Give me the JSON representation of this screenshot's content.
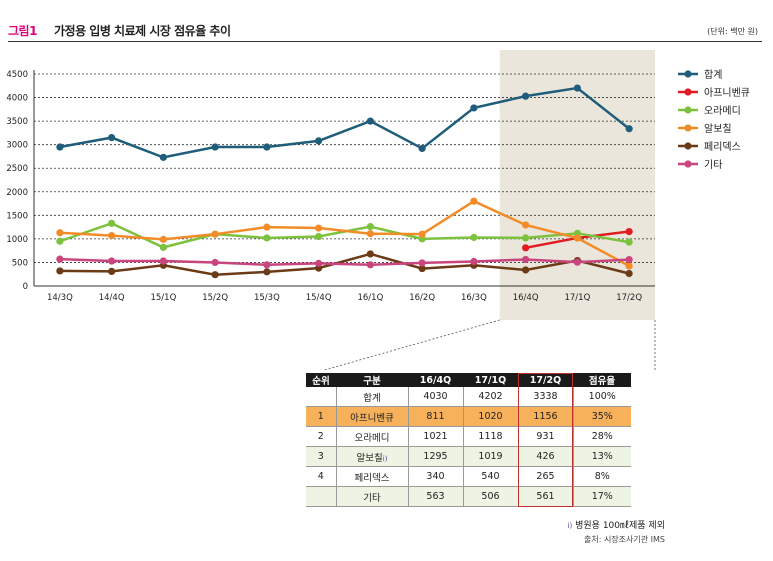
{
  "figure": {
    "label": "그림1",
    "title": "가정용 입병 치료제 시장 점유율 추이",
    "unit": "(단위: 백만 원)"
  },
  "chart_data": {
    "type": "line",
    "categories": [
      "14/3Q",
      "14/4Q",
      "15/1Q",
      "15/2Q",
      "15/3Q",
      "15/4Q",
      "16/1Q",
      "16/2Q",
      "16/3Q",
      "16/4Q",
      "17/1Q",
      "17/2Q"
    ],
    "ylim": [
      0,
      4500
    ],
    "yticks": [
      0,
      500,
      1000,
      1500,
      2000,
      2500,
      3000,
      3500,
      4000,
      4500
    ],
    "grid": "dashed horizontal",
    "highlight_range": [
      "16/4Q",
      "17/2Q"
    ],
    "legend_position": "right",
    "series": [
      {
        "name": "합계",
        "color": "#1f5d7a",
        "values": [
          2950,
          3150,
          2730,
          2950,
          2950,
          3080,
          3500,
          2920,
          3780,
          4030,
          4202,
          3338
        ]
      },
      {
        "name": "아프니벤큐",
        "color": "#e01b22",
        "values": [
          null,
          null,
          null,
          null,
          null,
          null,
          null,
          null,
          null,
          811,
          1020,
          1156
        ]
      },
      {
        "name": "오라메디",
        "color": "#7dc23e",
        "values": [
          950,
          1330,
          820,
          1100,
          1020,
          1050,
          1260,
          1000,
          1030,
          1021,
          1118,
          931
        ]
      },
      {
        "name": "알보칠",
        "color": "#f28c28",
        "values": [
          1130,
          1070,
          990,
          1100,
          1250,
          1230,
          1110,
          1100,
          1800,
          1295,
          1019,
          426
        ]
      },
      {
        "name": "페리덱스",
        "color": "#6b3a16",
        "values": [
          320,
          310,
          440,
          240,
          300,
          380,
          680,
          370,
          440,
          340,
          540,
          265
        ]
      },
      {
        "name": "기타",
        "color": "#c8457e",
        "values": [
          570,
          530,
          530,
          500,
          450,
          480,
          450,
          490,
          520,
          563,
          506,
          561
        ]
      }
    ]
  },
  "table": {
    "headers": [
      "순위",
      "구분",
      "16/4Q",
      "17/1Q",
      "17/2Q",
      "점유율"
    ],
    "rows": [
      {
        "rank": "",
        "name": "합계",
        "q1": "4030",
        "q2": "4202",
        "q3": "3338",
        "share": "100%"
      },
      {
        "rank": "1",
        "name": "아프니벤큐",
        "q1": "811",
        "q2": "1020",
        "q3": "1156",
        "share": "35%"
      },
      {
        "rank": "2",
        "name": "오라메디",
        "q1": "1021",
        "q2": "1118",
        "q3": "931",
        "share": "28%"
      },
      {
        "rank": "3",
        "name": "알보칠",
        "name_sup": "i)",
        "q1": "1295",
        "q2": "1019",
        "q3": "426",
        "share": "13%"
      },
      {
        "rank": "4",
        "name": "페리덱스",
        "q1": "340",
        "q2": "540",
        "q3": "265",
        "share": "8%"
      },
      {
        "rank": "",
        "name": "기타",
        "q1": "563",
        "q2": "506",
        "q3": "561",
        "share": "17%"
      }
    ]
  },
  "footnote": {
    "mark": "i)",
    "text": "병원용 100㎖제품 제외"
  },
  "source": "출처: 시장조사기관 IMS"
}
